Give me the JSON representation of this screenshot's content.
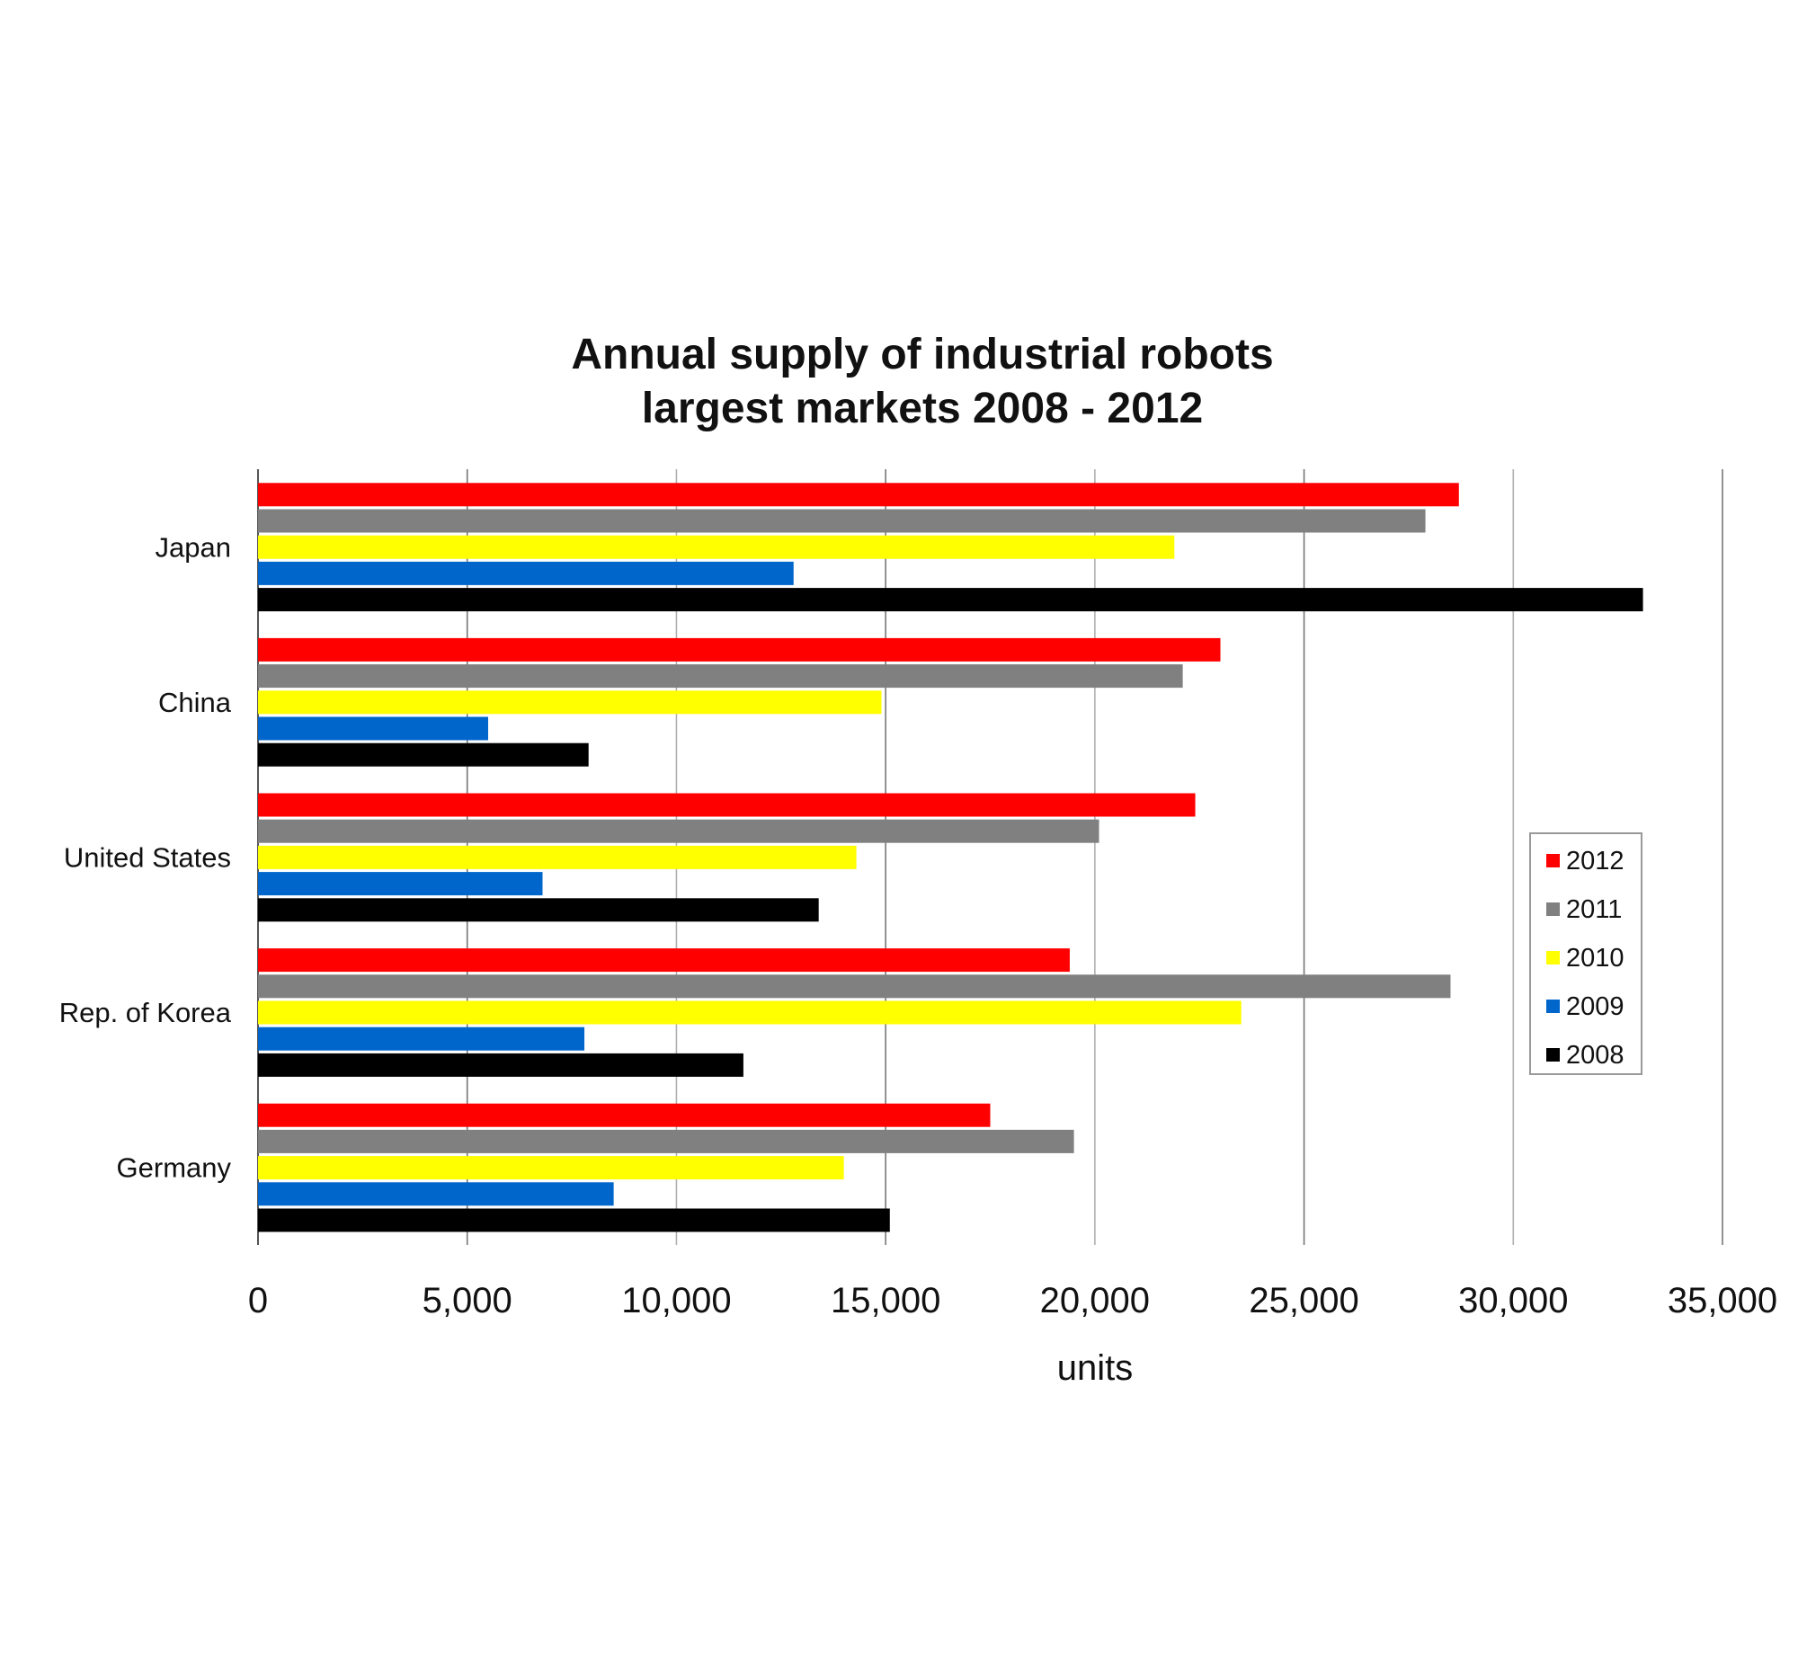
{
  "chart_data": {
    "type": "bar",
    "orientation": "horizontal",
    "title": "Annual supply of industrial robots",
    "subtitle": "largest markets 2008 - 2012",
    "xlabel": "units",
    "ylabel": "",
    "xlim": [
      0,
      35000
    ],
    "x_ticks": [
      0,
      5000,
      10000,
      15000,
      20000,
      25000,
      30000,
      35000
    ],
    "x_tick_labels": [
      "0",
      "5,000",
      "10,000",
      "15,000",
      "20,000",
      "25,000",
      "30,000",
      "35,000"
    ],
    "grid": "vertical",
    "legend_position": "right",
    "categories": [
      "Japan",
      "China",
      "United States",
      "Rep. of Korea",
      "Germany"
    ],
    "series": [
      {
        "name": "2012",
        "color": "#ff0000",
        "values": [
          28700,
          23000,
          22400,
          19400,
          17500
        ]
      },
      {
        "name": "2011",
        "color": "#808080",
        "values": [
          27900,
          22100,
          20100,
          28500,
          19500
        ]
      },
      {
        "name": "2010",
        "color": "#ffff00",
        "values": [
          21900,
          14900,
          14300,
          23500,
          14000
        ]
      },
      {
        "name": "2009",
        "color": "#0066cc",
        "values": [
          12800,
          5500,
          6800,
          7800,
          8500
        ]
      },
      {
        "name": "2008",
        "color": "#000000",
        "values": [
          33100,
          7900,
          13400,
          11600,
          15100
        ]
      }
    ]
  }
}
